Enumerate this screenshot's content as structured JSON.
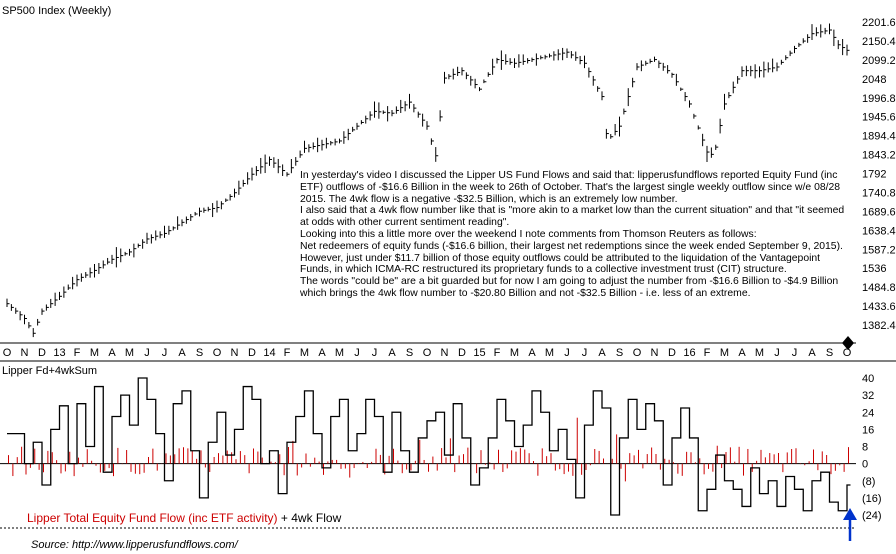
{
  "chart_data": [
    {
      "type": "ohlc",
      "title": "SP500 Index (Weekly)",
      "y_axis": "right",
      "y_ticks": [
        "2201.6",
        "2150.4",
        "2099.2",
        "2048",
        "1996.8",
        "1945.6",
        "1894.4",
        "1843.2",
        "1792",
        "1740.8",
        "1689.6",
        "1638.4",
        "1587.2",
        "1536",
        "1484.8",
        "1433.6",
        "1382.4"
      ],
      "y_range": [
        1331.2,
        2227.2
      ],
      "x_labels": [
        "O",
        "N",
        "D",
        "13",
        "F",
        "M",
        "A",
        "M",
        "J",
        "J",
        "A",
        "S",
        "O",
        "N",
        "D",
        "14",
        "F",
        "M",
        "A",
        "M",
        "J",
        "J",
        "A",
        "S",
        "O",
        "N",
        "D",
        "15",
        "F",
        "M",
        "A",
        "M",
        "J",
        "J",
        "A",
        "S",
        "O",
        "N",
        "D",
        "16",
        "F",
        "M",
        "A",
        "M",
        "J",
        "J",
        "A",
        "S",
        "O"
      ],
      "anchor_points": [
        [
          0,
          1440
        ],
        [
          1,
          1400
        ],
        [
          1.5,
          1360
        ],
        [
          2,
          1420
        ],
        [
          3,
          1460
        ],
        [
          4,
          1505
        ],
        [
          5,
          1530
        ],
        [
          6,
          1560
        ],
        [
          7,
          1580
        ],
        [
          8,
          1615
        ],
        [
          9,
          1630
        ],
        [
          10,
          1660
        ],
        [
          11,
          1690
        ],
        [
          12,
          1700
        ],
        [
          13,
          1740
        ],
        [
          14,
          1790
        ],
        [
          15,
          1830
        ],
        [
          16,
          1790
        ],
        [
          17,
          1860
        ],
        [
          18,
          1870
        ],
        [
          19,
          1880
        ],
        [
          20,
          1920
        ],
        [
          21,
          1960
        ],
        [
          22,
          1955
        ],
        [
          23,
          1985
        ],
        [
          24,
          1920
        ],
        [
          24.5,
          1840
        ],
        [
          25,
          2050
        ],
        [
          26,
          2070
        ],
        [
          27,
          2020
        ],
        [
          28,
          2100
        ],
        [
          29,
          2090
        ],
        [
          30,
          2100
        ],
        [
          31,
          2110
        ],
        [
          32,
          2120
        ],
        [
          33,
          2090
        ],
        [
          34,
          2000
        ],
        [
          34.3,
          1880
        ],
        [
          35,
          1920
        ],
        [
          36,
          2080
        ],
        [
          37,
          2100
        ],
        [
          38,
          2060
        ],
        [
          39,
          1980
        ],
        [
          40,
          1850
        ],
        [
          40.4,
          1840
        ],
        [
          41,
          1980
        ],
        [
          42,
          2070
        ],
        [
          43,
          2070
        ],
        [
          44,
          2080
        ],
        [
          45,
          2130
        ],
        [
          46,
          2170
        ],
        [
          47,
          2180
        ],
        [
          47.5,
          2140
        ],
        [
          48,
          2125
        ]
      ]
    },
    {
      "type": "bar+line",
      "title": "Lipper Fd+4wkSum",
      "y_axis": "right",
      "y_ticks": [
        "40",
        "32",
        "24",
        "16",
        "8",
        "0",
        "(8)",
        "(16)",
        "(24)"
      ],
      "y_range": [
        -28,
        44
      ],
      "series": [
        {
          "name": "Lipper Total Equity Fund Flow (inc ETF activity)",
          "color": "#cc0000"
        },
        {
          "name": "4wk Flow",
          "color": "#000000"
        }
      ],
      "anchor_points": [
        [
          0,
          14
        ],
        [
          1,
          0
        ],
        [
          1.5,
          10
        ],
        [
          2,
          -10
        ],
        [
          2.5,
          16
        ],
        [
          3,
          27
        ],
        [
          3.5,
          0
        ],
        [
          4,
          28
        ],
        [
          4.5,
          8
        ],
        [
          5,
          36
        ],
        [
          5.5,
          -4
        ],
        [
          6,
          22
        ],
        [
          6.5,
          32
        ],
        [
          7,
          18
        ],
        [
          7.5,
          40
        ],
        [
          8,
          30
        ],
        [
          8.5,
          14
        ],
        [
          9,
          -8
        ],
        [
          9.5,
          28
        ],
        [
          10,
          34
        ],
        [
          10.5,
          6
        ],
        [
          11,
          -16
        ],
        [
          11.5,
          10
        ],
        [
          12,
          24
        ],
        [
          12.5,
          4
        ],
        [
          13,
          16
        ],
        [
          13.5,
          36
        ],
        [
          14,
          30
        ],
        [
          14.5,
          0
        ],
        [
          15,
          6
        ],
        [
          15.5,
          -14
        ],
        [
          16,
          10
        ],
        [
          16.5,
          22
        ],
        [
          17,
          34
        ],
        [
          17.5,
          14
        ],
        [
          18,
          -2
        ],
        [
          18.5,
          22
        ],
        [
          19,
          30
        ],
        [
          19.5,
          6
        ],
        [
          20,
          14
        ],
        [
          20.5,
          30
        ],
        [
          21,
          22
        ],
        [
          21.5,
          -4
        ],
        [
          22,
          24
        ],
        [
          22.5,
          6
        ],
        [
          23,
          -4
        ],
        [
          23.5,
          12
        ],
        [
          24,
          20
        ],
        [
          24.5,
          24
        ],
        [
          25,
          4
        ],
        [
          25.5,
          28
        ],
        [
          26,
          12
        ],
        [
          26.5,
          -10
        ],
        [
          27,
          -2
        ],
        [
          27.5,
          12
        ],
        [
          28,
          30
        ],
        [
          28.5,
          20
        ],
        [
          29,
          8
        ],
        [
          29.5,
          18
        ],
        [
          30,
          34
        ],
        [
          30.5,
          24
        ],
        [
          31,
          6
        ],
        [
          31.5,
          16
        ],
        [
          32,
          2
        ],
        [
          32.5,
          -16
        ],
        [
          33,
          18
        ],
        [
          33.5,
          34
        ],
        [
          34,
          26
        ],
        [
          34.5,
          -24
        ],
        [
          35,
          12
        ],
        [
          35.5,
          30
        ],
        [
          36,
          16
        ],
        [
          36.5,
          28
        ],
        [
          37,
          20
        ],
        [
          37.5,
          -10
        ],
        [
          38,
          12
        ],
        [
          38.5,
          26
        ],
        [
          39,
          12
        ],
        [
          39.5,
          -22
        ],
        [
          40,
          -12
        ],
        [
          40.5,
          4
        ],
        [
          41,
          -8
        ],
        [
          41.5,
          -12
        ],
        [
          42,
          -20
        ],
        [
          42.5,
          -2
        ],
        [
          43,
          -14
        ],
        [
          43.5,
          -8
        ],
        [
          44,
          -20
        ],
        [
          44.5,
          -6
        ],
        [
          45,
          -12
        ],
        [
          45.5,
          -22
        ],
        [
          46,
          -8
        ],
        [
          46.5,
          -4
        ],
        [
          47,
          -18
        ],
        [
          47.5,
          -22
        ],
        [
          48,
          -10
        ]
      ],
      "annotations": [
        "blue arrow pointing up at the latest 4wk value"
      ]
    }
  ],
  "commentary": [
    "In yesterday's video I discussed the Lipper US Fund Flows and said that:  lipperusfundflows reported Equity Fund (inc ETF) outflows of -$16.6 Billion in the week to 26th of October. That's the largest single weekly outflow since w/e 08/28 2015.  The 4wk flow is a negative -$32.5 Billion, which is an extremely low number.",
    "I also said that a 4wk flow number like that is \"more akin to a market low than the current situation\" and that \"it seemed at odds with other current sentiment reading\".",
    "Looking into this a little more over the weekend I note comments from Thomson Reuters as follows:",
    "Net redeemers of equity funds (-$16.6 billion, their largest net redemptions since the week ended September 9, 2015). However, just under $11.7 billion of those equity outflows could be attributed to the liquidation of the Vantagepoint Funds, in which ICMA-RC restructured its proprietary funds to a collective investment trust (CIT) structure.",
    "The words \"could be\" are a bit guarded but for now I am going to adjust the number from -$16.6 Billion to -$4.9 Billion which brings the 4wk flow number to -$20.80 Billion and not -$32.5 Billion - i.e. less of an extreme."
  ],
  "legend": {
    "red_text": "Lipper Total Equity Fund Flow (inc ETF activity)",
    "black_text": " + 4wk Flow"
  },
  "source": "Source:   http://www.lipperusfundflows.com/",
  "colors": {
    "bars": "#cc0000",
    "line": "#000000",
    "arrow": "#0033cc",
    "axis": "#000000"
  }
}
